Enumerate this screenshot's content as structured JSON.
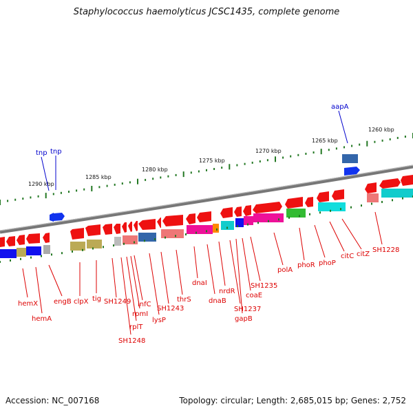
{
  "title": "Staphylococcus haemolyticus JCSC1435, complete genome",
  "footer": {
    "accession": "Accession: NC_007168",
    "topology": "Topology: circular; Length: 2,685,015 bp; Genes: 2,752"
  },
  "colors": {
    "forward_gene": "#ee1111",
    "label_line": "#dd0000",
    "label_line_blue": "#0000cc",
    "backbone": "#777777",
    "tick": "#227722"
  },
  "ruler": [
    {
      "label": "1290 kbp"
    },
    {
      "label": "1285 kbp"
    },
    {
      "label": "1280 kbp"
    },
    {
      "label": "1275 kbp"
    },
    {
      "label": "1270 kbp"
    },
    {
      "label": "1265 kbp"
    },
    {
      "label": "1260 kbp"
    }
  ],
  "gene_labels": [
    {
      "text": "hemX",
      "color": "red"
    },
    {
      "text": "hemA",
      "color": "red"
    },
    {
      "text": "engB",
      "color": "red"
    },
    {
      "text": "clpX",
      "color": "red"
    },
    {
      "text": "tig",
      "color": "red"
    },
    {
      "text": "SH1249",
      "color": "red"
    },
    {
      "text": "SH1248",
      "color": "red"
    },
    {
      "text": "rplT",
      "color": "red"
    },
    {
      "text": "rpmI",
      "color": "red"
    },
    {
      "text": "infC",
      "color": "red"
    },
    {
      "text": "lysP",
      "color": "red"
    },
    {
      "text": "SH1243",
      "color": "red"
    },
    {
      "text": "thrS",
      "color": "red"
    },
    {
      "text": "dnaI",
      "color": "red"
    },
    {
      "text": "dnaB",
      "color": "red"
    },
    {
      "text": "nrdR",
      "color": "red"
    },
    {
      "text": "SH1237",
      "color": "red"
    },
    {
      "text": "gapB",
      "color": "red"
    },
    {
      "text": "coaE",
      "color": "red"
    },
    {
      "text": "SH1235",
      "color": "red"
    },
    {
      "text": "polA",
      "color": "red"
    },
    {
      "text": "phoR",
      "color": "red"
    },
    {
      "text": "phoP",
      "color": "red"
    },
    {
      "text": "citC",
      "color": "red"
    },
    {
      "text": "citZ",
      "color": "red"
    },
    {
      "text": "SH1228",
      "color": "red"
    },
    {
      "text": "tnp",
      "color": "blue"
    },
    {
      "text": "tnp",
      "color": "blue"
    },
    {
      "text": "aapA",
      "color": "blue"
    }
  ]
}
